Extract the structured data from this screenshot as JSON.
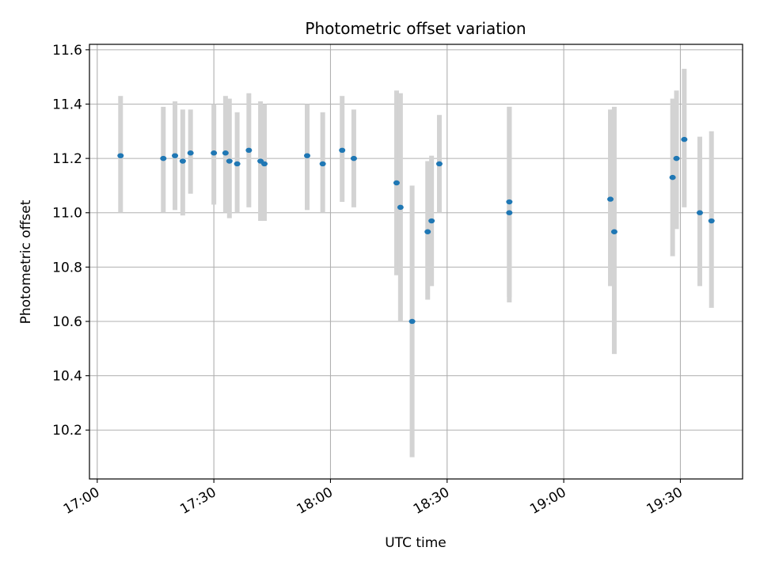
{
  "chart_data": {
    "type": "scatter",
    "title": "Photometric offset variation",
    "xlabel": "UTC time",
    "ylabel": "Photometric offset",
    "x_type": "time",
    "x_ticks": [
      "17:00",
      "17:30",
      "18:00",
      "18:30",
      "19:00",
      "19:30"
    ],
    "xlim": [
      "16:58",
      "19:46"
    ],
    "y_ticks": [
      "10.2",
      "10.4",
      "10.6",
      "10.8",
      "11.0",
      "11.2",
      "11.4",
      "11.6"
    ],
    "ylim": [
      10.02,
      11.62
    ],
    "grid": true,
    "marker_color": "#1f77b4",
    "errorbar_color": "#d3d3d3",
    "series": [
      {
        "points": [
          {
            "x": "17:06",
            "y": 11.21,
            "ylo": 11.0,
            "yhi": 11.43
          },
          {
            "x": "17:17",
            "y": 11.2,
            "ylo": 11.0,
            "yhi": 11.39
          },
          {
            "x": "17:20",
            "y": 11.21,
            "ylo": 11.01,
            "yhi": 11.41
          },
          {
            "x": "17:22",
            "y": 11.19,
            "ylo": 10.99,
            "yhi": 11.38
          },
          {
            "x": "17:24",
            "y": 11.22,
            "ylo": 11.07,
            "yhi": 11.38
          },
          {
            "x": "17:30",
            "y": 11.22,
            "ylo": 11.03,
            "yhi": 11.4
          },
          {
            "x": "17:33",
            "y": 11.22,
            "ylo": 11.0,
            "yhi": 11.43
          },
          {
            "x": "17:34",
            "y": 11.19,
            "ylo": 10.98,
            "yhi": 11.42
          },
          {
            "x": "17:36",
            "y": 11.18,
            "ylo": 11.0,
            "yhi": 11.37
          },
          {
            "x": "17:39",
            "y": 11.23,
            "ylo": 11.02,
            "yhi": 11.44
          },
          {
            "x": "17:42",
            "y": 11.19,
            "ylo": 10.97,
            "yhi": 11.41
          },
          {
            "x": "17:43",
            "y": 11.18,
            "ylo": 10.97,
            "yhi": 11.4
          },
          {
            "x": "17:54",
            "y": 11.21,
            "ylo": 11.01,
            "yhi": 11.4
          },
          {
            "x": "17:58",
            "y": 11.18,
            "ylo": 11.0,
            "yhi": 11.37
          },
          {
            "x": "18:03",
            "y": 11.23,
            "ylo": 11.04,
            "yhi": 11.43
          },
          {
            "x": "18:06",
            "y": 11.2,
            "ylo": 11.02,
            "yhi": 11.38
          },
          {
            "x": "18:17",
            "y": 11.11,
            "ylo": 10.77,
            "yhi": 11.45
          },
          {
            "x": "18:18",
            "y": 11.02,
            "ylo": 10.6,
            "yhi": 11.44
          },
          {
            "x": "18:21",
            "y": 10.6,
            "ylo": 10.1,
            "yhi": 11.1
          },
          {
            "x": "18:25",
            "y": 10.93,
            "ylo": 10.68,
            "yhi": 11.19
          },
          {
            "x": "18:26",
            "y": 10.97,
            "ylo": 10.73,
            "yhi": 11.21
          },
          {
            "x": "18:28",
            "y": 11.18,
            "ylo": 11.0,
            "yhi": 11.36
          },
          {
            "x": "18:46",
            "y": 11.0,
            "ylo": 10.67,
            "yhi": 11.39
          },
          {
            "x": "18:46",
            "y": 11.04,
            "ylo": 10.69,
            "yhi": 11.39
          },
          {
            "x": "19:12",
            "y": 11.05,
            "ylo": 10.73,
            "yhi": 11.38
          },
          {
            "x": "19:13",
            "y": 10.93,
            "ylo": 10.48,
            "yhi": 11.39
          },
          {
            "x": "19:28",
            "y": 11.13,
            "ylo": 10.84,
            "yhi": 11.42
          },
          {
            "x": "19:29",
            "y": 11.2,
            "ylo": 10.94,
            "yhi": 11.45
          },
          {
            "x": "19:31",
            "y": 11.27,
            "ylo": 11.02,
            "yhi": 11.53
          },
          {
            "x": "19:35",
            "y": 11.0,
            "ylo": 10.73,
            "yhi": 11.28
          },
          {
            "x": "19:38",
            "y": 10.97,
            "ylo": 10.65,
            "yhi": 11.3
          }
        ]
      }
    ]
  }
}
